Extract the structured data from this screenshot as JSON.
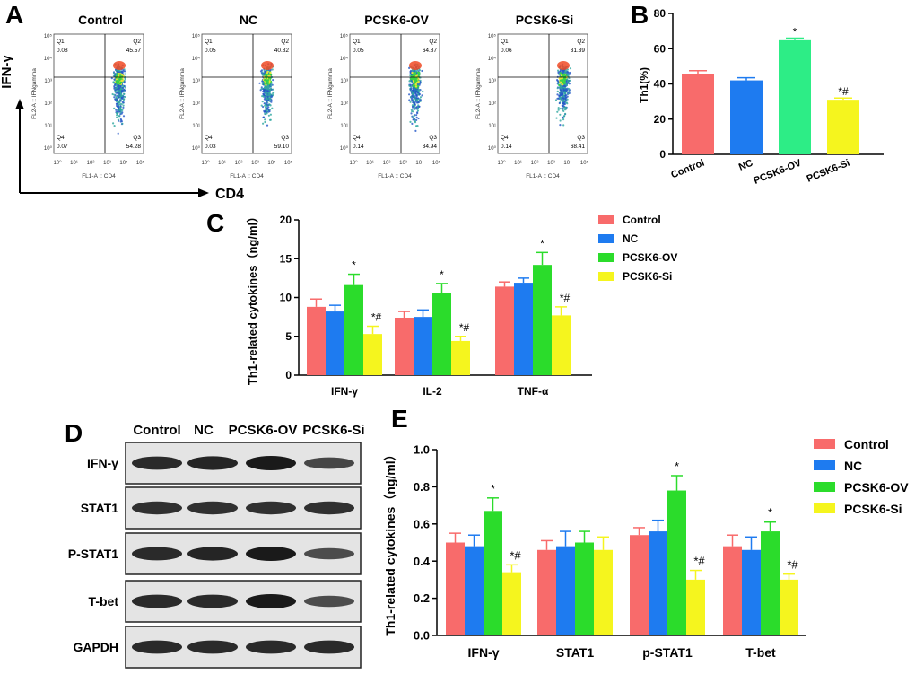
{
  "colors": {
    "control": "#f86b6b",
    "nc": "#1e7bf0",
    "ov": "#2bdc2b",
    "ov_b": "#2ded86",
    "si": "#f5f51e",
    "blot": "#1a1a1a"
  },
  "panel_labels": [
    "A",
    "B",
    "C",
    "D",
    "E"
  ],
  "panel_a": {
    "y_axis": "IFN-γ",
    "x_axis": "CD4",
    "plot_xlabel": "FL1-A :: CD4",
    "plot_ylabel": "FL2-A :: IFNgamma",
    "tick_labels": [
      "10⁰",
      "10¹",
      "10²",
      "10³",
      "10⁴",
      "10⁵"
    ],
    "plots": [
      {
        "title": "Control",
        "q1": "0.08",
        "q2": "45.57",
        "q3": "54.28",
        "q4": "0.07"
      },
      {
        "title": "NC",
        "q1": "0.05",
        "q2": "40.82",
        "q3": "59.10",
        "q4": "0.03"
      },
      {
        "title": "PCSK6-OV",
        "q1": "0.05",
        "q2": "64.87",
        "q3": "34.94",
        "q4": "0.14"
      },
      {
        "title": "PCSK6-Si",
        "q1": "0.06",
        "q2": "31.39",
        "q3": "68.41",
        "q4": "0.14"
      }
    ],
    "quadrant_names": [
      "Q1",
      "Q2",
      "Q3",
      "Q4"
    ]
  },
  "blot": {
    "lanes": [
      "Control",
      "NC",
      "PCSK6-OV",
      "PCSK6-Si"
    ],
    "rows": [
      {
        "label": "IFN-γ",
        "intensity": [
          0.85,
          0.9,
          1.0,
          0.6
        ]
      },
      {
        "label": "STAT1",
        "intensity": [
          0.8,
          0.8,
          0.8,
          0.8
        ]
      },
      {
        "label": "P-STAT1",
        "intensity": [
          0.85,
          0.9,
          1.0,
          0.55
        ]
      },
      {
        "label": "T-bet",
        "intensity": [
          0.85,
          0.85,
          1.0,
          0.55
        ]
      },
      {
        "label": "GAPDH",
        "intensity": [
          0.85,
          0.85,
          0.85,
          0.85
        ]
      }
    ]
  },
  "chart_data": [
    {
      "panel": "B",
      "type": "bar",
      "title": "",
      "ylabel": "Th1(%)",
      "ylim": [
        0,
        80
      ],
      "yticks": [
        "0",
        "20",
        "40",
        "60",
        "80"
      ],
      "categories": [
        "Control",
        "NC",
        "PCSK6-OV",
        "PCSK6-Si"
      ],
      "values": [
        45.5,
        42,
        64.8,
        31
      ],
      "errors": [
        2,
        1.5,
        1.2,
        1
      ],
      "annotations": [
        "",
        "",
        "*",
        "*#"
      ]
    },
    {
      "panel": "C",
      "type": "bar",
      "title": "",
      "ylabel": "Th1-related cytokines（ng/ml）",
      "ylim": [
        0,
        20
      ],
      "yticks": [
        "0",
        "5",
        "10",
        "15",
        "20"
      ],
      "categories": [
        "IFN-γ",
        "IL-2",
        "TNF-α"
      ],
      "series": [
        {
          "name": "Control",
          "values": [
            8.8,
            7.4,
            11.4
          ],
          "errors": [
            1,
            0.8,
            0.6
          ]
        },
        {
          "name": "NC",
          "values": [
            8.2,
            7.5,
            11.9
          ],
          "errors": [
            0.8,
            0.9,
            0.6
          ]
        },
        {
          "name": "PCSK6-OV",
          "values": [
            11.6,
            10.6,
            14.2
          ],
          "errors": [
            1.4,
            1.2,
            1.6
          ]
        },
        {
          "name": "PCSK6-Si",
          "values": [
            5.3,
            4.4,
            7.7
          ],
          "errors": [
            1,
            0.6,
            1.1
          ]
        }
      ],
      "annotations": [
        [
          "",
          "",
          "*",
          "*#"
        ],
        [
          "",
          "",
          "*",
          "*#"
        ],
        [
          "",
          "",
          "*",
          "*#"
        ]
      ]
    },
    {
      "panel": "E",
      "type": "bar",
      "title": "",
      "ylabel": "Th1-related cytokines（ng/ml）",
      "ylim": [
        0,
        1.0
      ],
      "yticks": [
        "0.0",
        "0.2",
        "0.4",
        "0.6",
        "0.8",
        "1.0"
      ],
      "categories": [
        "IFN-γ",
        "STAT1",
        "p-STAT1",
        "T-bet"
      ],
      "series": [
        {
          "name": "Control",
          "values": [
            0.5,
            0.46,
            0.54,
            0.48
          ],
          "errors": [
            0.05,
            0.05,
            0.04,
            0.06
          ]
        },
        {
          "name": "NC",
          "values": [
            0.48,
            0.48,
            0.56,
            0.46
          ],
          "errors": [
            0.06,
            0.08,
            0.06,
            0.07
          ]
        },
        {
          "name": "PCSK6-OV",
          "values": [
            0.67,
            0.5,
            0.78,
            0.56
          ],
          "errors": [
            0.07,
            0.06,
            0.08,
            0.05
          ]
        },
        {
          "name": "PCSK6-Si",
          "values": [
            0.34,
            0.46,
            0.3,
            0.3
          ],
          "errors": [
            0.04,
            0.07,
            0.05,
            0.03
          ]
        }
      ],
      "annotations": [
        [
          "",
          "",
          "*",
          "*#"
        ],
        [
          "",
          "",
          "",
          ""
        ],
        [
          "",
          "",
          "*",
          "*#"
        ],
        [
          "",
          "",
          "*",
          "*#"
        ]
      ]
    }
  ]
}
